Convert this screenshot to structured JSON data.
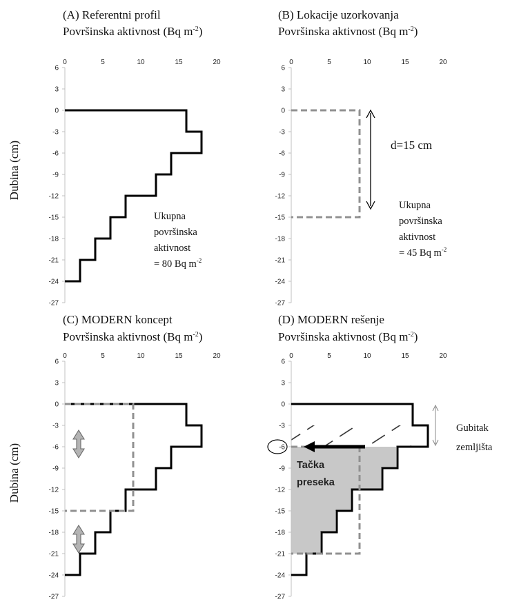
{
  "figure": {
    "y_axis_label": "Dubina (cm)"
  },
  "colors": {
    "reference_line": "#000000",
    "sampling_line": "#909090",
    "arrow": "#000000",
    "shaded_area": "#c8c8c8",
    "hatch": "#222222",
    "updown_arrow": "#b4b4b4"
  },
  "chart_data": [
    {
      "id": "A",
      "type": "line",
      "title": "(A) Referentni profil",
      "subtitle": "Površinska aktivnost (Bq m-2)",
      "xlabel": "Površinska aktivnost (Bq m-2)",
      "ylabel": "Dubina (cm)",
      "xlim": [
        0,
        20
      ],
      "ylim": [
        -27,
        6
      ],
      "xticks": [
        "0",
        "5",
        "10",
        "15",
        "20"
      ],
      "yticks": [
        "6",
        "3",
        "0",
        "-3",
        "-6",
        "-9",
        "-12",
        "-15",
        "-18",
        "-21",
        "-24",
        "-27"
      ],
      "series": [
        {
          "style": "solid",
          "x": [
            0,
            16,
            16,
            18,
            18,
            14,
            14,
            12,
            12,
            8,
            8,
            6,
            6,
            4,
            4,
            2,
            2,
            0
          ],
          "y": [
            0,
            0,
            -3,
            -3,
            -6,
            -6,
            -9,
            -9,
            -12,
            -12,
            -15,
            -15,
            -18,
            -18,
            -21,
            -21,
            -24,
            -24
          ]
        }
      ],
      "annotations": [
        "Ukupna",
        "površinska",
        "aktivnost",
        "= 80 Bq m-2"
      ]
    },
    {
      "id": "B",
      "type": "line",
      "title": "(B) Lokacije uzorkovanja",
      "subtitle": "Površinska aktivnost (Bq m-2)",
      "xlabel": "Površinska aktivnost (Bq m-2)",
      "ylabel": "",
      "xlim": [
        0,
        20
      ],
      "ylim": [
        -27,
        6
      ],
      "xticks": [
        "0",
        "5",
        "10",
        "15",
        "20"
      ],
      "yticks": [
        "6",
        "3",
        "0",
        "-3",
        "-6",
        "-9",
        "-12",
        "-15",
        "-18",
        "-21",
        "-24",
        "-27"
      ],
      "series": [
        {
          "style": "dashed",
          "x": [
            0,
            9,
            9,
            0
          ],
          "y": [
            0,
            0,
            -15,
            -15
          ]
        }
      ],
      "annotations": [
        "d=15 cm",
        "Ukupna",
        "površinska",
        "aktivnost",
        "= 45 Bq m-2"
      ]
    },
    {
      "id": "C",
      "type": "line",
      "title": "(C) MODERN koncept",
      "subtitle": "Površinska aktivnost (Bq m-2)",
      "xlabel": "Površinska aktivnost (Bq m-2)",
      "ylabel": "Dubina (cm)",
      "xlim": [
        0,
        20
      ],
      "ylim": [
        -27,
        6
      ],
      "xticks": [
        "0",
        "5",
        "10",
        "15",
        "20"
      ],
      "yticks": [
        "6",
        "3",
        "0",
        "-3",
        "-6",
        "-9",
        "-12",
        "-15",
        "-18",
        "-21",
        "-24",
        "-27"
      ],
      "series": [
        {
          "style": "solid",
          "x": [
            0,
            16,
            16,
            18,
            18,
            14,
            14,
            12,
            12,
            8,
            8,
            6,
            6,
            4,
            4,
            2,
            2,
            0
          ],
          "y": [
            0,
            0,
            -3,
            -3,
            -6,
            -6,
            -9,
            -9,
            -12,
            -12,
            -15,
            -15,
            -18,
            -18,
            -21,
            -21,
            -24,
            -24
          ]
        },
        {
          "style": "dashed",
          "x": [
            0,
            9,
            9,
            0
          ],
          "y": [
            0,
            0,
            -15,
            -15
          ]
        }
      ],
      "annotations": []
    },
    {
      "id": "D",
      "type": "line",
      "title": "(D) MODERN rešenje",
      "subtitle": "Površinska aktivnost (Bq m-2)",
      "xlabel": "Površinska aktivnost (Bq m-2)",
      "ylabel": "",
      "xlim": [
        0,
        20
      ],
      "ylim": [
        -27,
        6
      ],
      "xticks": [
        "0",
        "5",
        "10",
        "15",
        "20"
      ],
      "yticks": [
        "6",
        "3",
        "0",
        "-3",
        "-6",
        "-9",
        "-12",
        "-15",
        "-18",
        "-21",
        "-24",
        "-27"
      ],
      "series": [
        {
          "style": "solid",
          "x": [
            0,
            16,
            16,
            18,
            18,
            14,
            14,
            12,
            12,
            8,
            8,
            6,
            6,
            4,
            4,
            2,
            2,
            0
          ],
          "y": [
            0,
            0,
            -3,
            -3,
            -6,
            -6,
            -9,
            -9,
            -12,
            -12,
            -15,
            -15,
            -18,
            -18,
            -21,
            -21,
            -24,
            -24
          ]
        },
        {
          "style": "dashed",
          "x": [
            0,
            9,
            9,
            0
          ],
          "y": [
            -6,
            -6,
            -21,
            -21
          ]
        }
      ],
      "annotations": [
        "Gubitak",
        "zemljišta",
        "Tačka",
        "preseka"
      ],
      "highlighted_tick": "-6"
    }
  ]
}
